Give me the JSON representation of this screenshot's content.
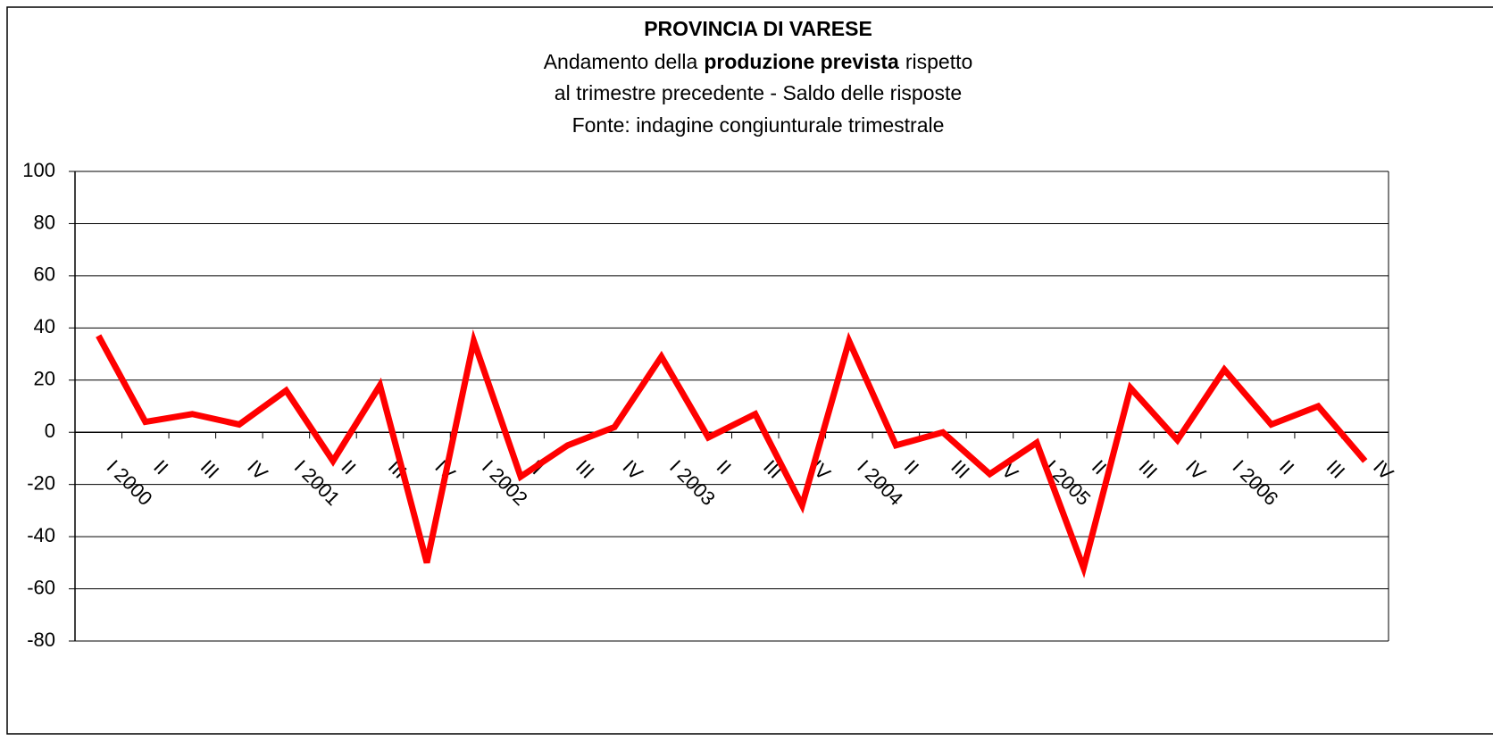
{
  "chart_data": {
    "type": "line",
    "title": "PROVINCIA DI VARESE",
    "subtitle": [
      "Andamento della",
      "produzione prevista",
      "rispetto",
      "al trimestre precedente - Saldo delle risposte",
      "Fonte: indagine congiunturale trimestrale"
    ],
    "categories": [
      "I 2000",
      "II",
      "III",
      "IV",
      "I 2001",
      "II",
      "III",
      "IV",
      "I 2002",
      "II",
      "III",
      "IV",
      "I 2003",
      "II",
      "III",
      "IV",
      "I 2004",
      "II",
      "III",
      "IV",
      "I 2005",
      "II",
      "III",
      "IV",
      "I 2006",
      "II",
      "III",
      "IV"
    ],
    "series": [
      {
        "color": "#ff0000",
        "values": [
          37,
          4,
          7,
          3,
          16,
          -11,
          18,
          -50,
          35,
          -17,
          -5,
          2,
          29,
          -2,
          7,
          -28,
          35,
          -5,
          0,
          -16,
          -4,
          -52,
          17,
          -3,
          24,
          3,
          10,
          -11
        ]
      }
    ],
    "ylim": [
      -80,
      100
    ],
    "yticks": [
      -80,
      -60,
      -40,
      -20,
      0,
      20,
      40,
      60,
      80,
      100
    ],
    "grid": true
  }
}
